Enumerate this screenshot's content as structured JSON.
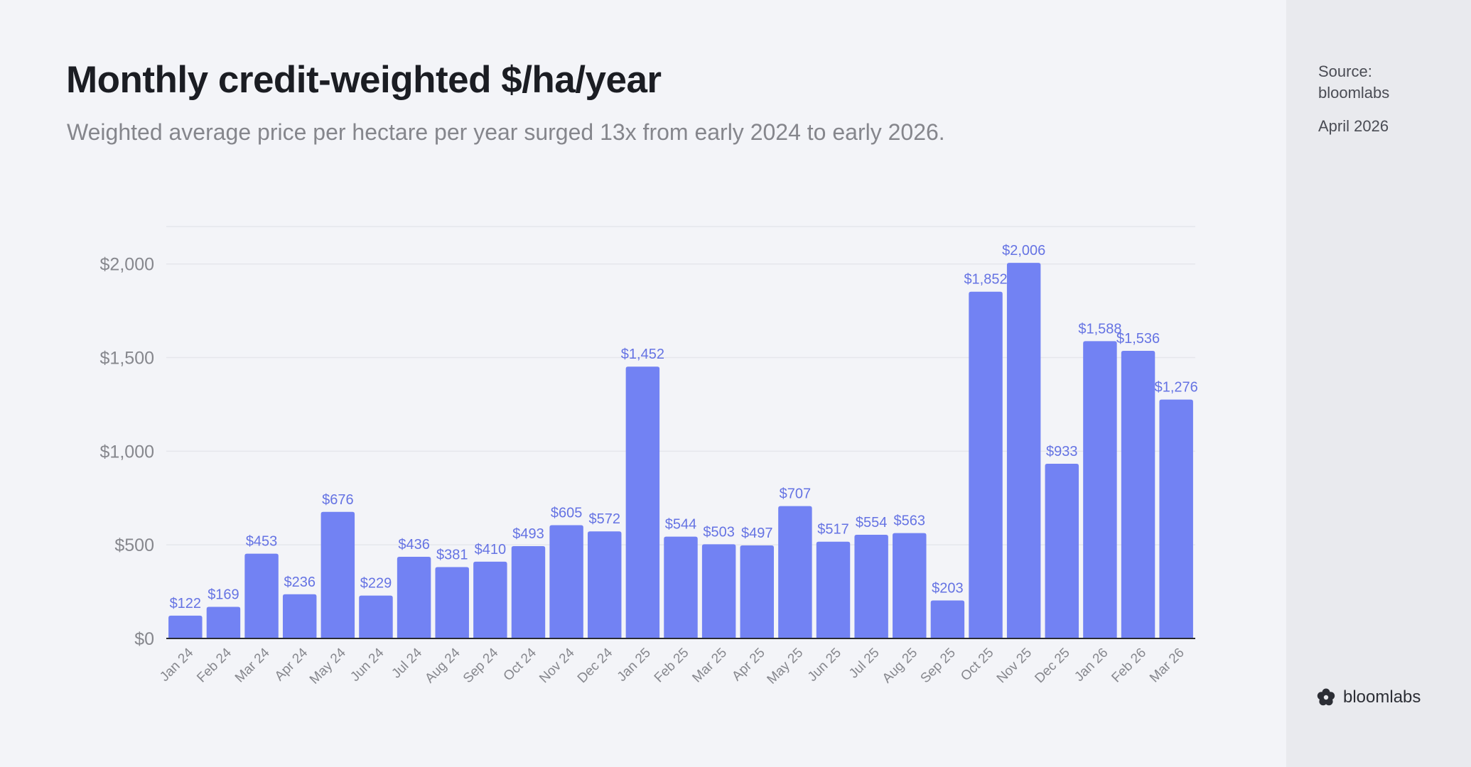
{
  "header": {
    "title": "Monthly credit-weighted $/ha/year",
    "subtitle": "Weighted average price per hectare per year surged 13x from early 2024 to early 2026."
  },
  "sidebar": {
    "source_label": "Source:",
    "source_name": "bloomlabs",
    "date": "April 2026",
    "brand": "bloomlabs",
    "brand_icon": "bloomlabs-logo-icon"
  },
  "colors": {
    "bar": "#7282f3",
    "label": "#6573e3",
    "background": "#f3f4f8",
    "sidebar": "#e9eaee"
  },
  "chart_data": {
    "type": "bar",
    "title": "Monthly credit-weighted $/ha/year",
    "xlabel": "",
    "ylabel": "",
    "ylim": [
      0,
      2200
    ],
    "yticks": [
      0,
      500,
      1000,
      1500,
      2000
    ],
    "ytick_labels": [
      "$0",
      "$500",
      "$1,000",
      "$1,500",
      "$2,000"
    ],
    "grid": true,
    "categories": [
      "Jan 24",
      "Feb 24",
      "Mar 24",
      "Apr 24",
      "May 24",
      "Jun 24",
      "Jul 24",
      "Aug 24",
      "Sep 24",
      "Oct 24",
      "Nov 24",
      "Dec 24",
      "Jan 25",
      "Feb 25",
      "Mar 25",
      "Apr 25",
      "May 25",
      "Jun 25",
      "Jul 25",
      "Aug 25",
      "Sep 25",
      "Oct 25",
      "Nov 25",
      "Dec 25",
      "Jan 26",
      "Feb 26",
      "Mar 26"
    ],
    "values": [
      122,
      169,
      453,
      236,
      676,
      229,
      436,
      381,
      410,
      493,
      605,
      572,
      1452,
      544,
      503,
      497,
      707,
      517,
      554,
      563,
      203,
      1852,
      2006,
      933,
      1588,
      1536,
      1276
    ],
    "data_labels": [
      "$122",
      "$169",
      "$453",
      "$236",
      "$676",
      "$229",
      "$436",
      "$381",
      "$410",
      "$493",
      "$605",
      "$572",
      "$1,452",
      "$544",
      "$503",
      "$497",
      "$707",
      "$517",
      "$554",
      "$563",
      "$203",
      "$1,852",
      "$2,006",
      "$933",
      "$1,588",
      "$1,536",
      "$1,276"
    ]
  }
}
